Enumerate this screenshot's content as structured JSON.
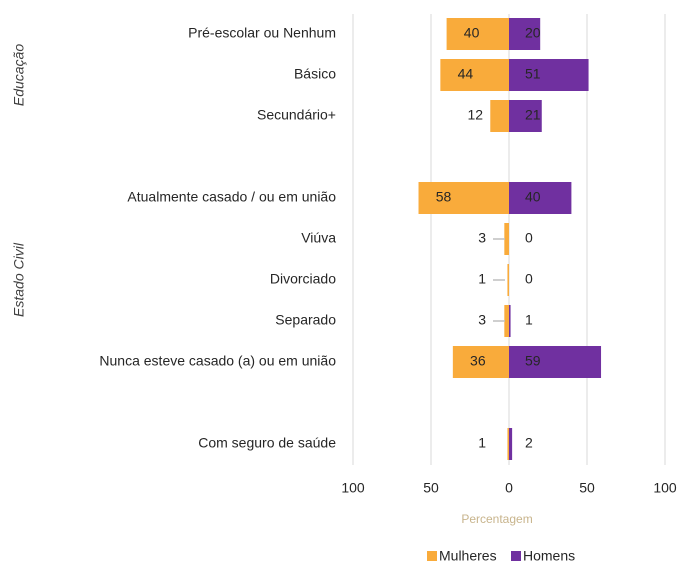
{
  "chart_data": {
    "type": "diverging-bar",
    "categories": [
      "Pré-escolar ou Nenhum",
      "Básico",
      "Secundário+",
      null,
      "Atualmente casado / ou em união",
      "Viúva",
      "Divorciado",
      "Separado",
      "Nunca esteve casado (a) ou em união",
      null,
      "Com seguro de saúde"
    ],
    "groups": [
      {
        "label": "Educação",
        "from": 0,
        "to": 2
      },
      {
        "label": "Estado Civil",
        "from": 4,
        "to": 8
      }
    ],
    "series": [
      {
        "name": "Mulheres",
        "color": "#f9ab3b",
        "side": "left",
        "values": [
          40,
          44,
          12,
          null,
          58,
          3,
          1,
          3,
          36,
          null,
          1
        ]
      },
      {
        "name": "Homens",
        "color": "#7030a0",
        "side": "right",
        "values": [
          20,
          51,
          21,
          null,
          40,
          0,
          0,
          1,
          59,
          null,
          2
        ]
      }
    ],
    "xlim": [
      -100,
      100
    ],
    "xticks": [
      {
        "value": -100,
        "label": "100"
      },
      {
        "value": -50,
        "label": "50"
      },
      0,
      50,
      {
        "value": 100,
        "label": "100"
      }
    ],
    "xlabel": "Percentagem",
    "grid": true
  }
}
